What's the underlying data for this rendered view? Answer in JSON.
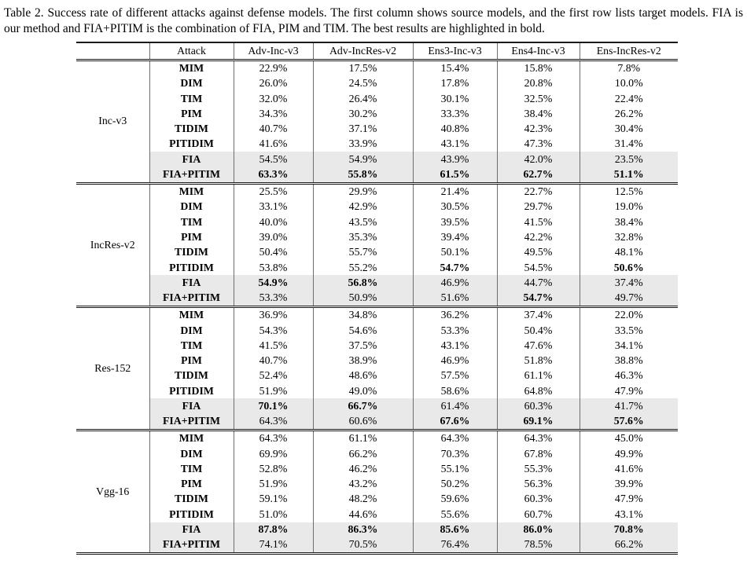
{
  "caption": "Table 2. Success rate of different attacks against defense models. The first column shows source models, and the first row lists target models. FIA is our method and FIA+PITIM is the combination of FIA, PIM and TIM. The best results are highlighted in bold.",
  "colors": {
    "highlight_row": "#e9e9e9",
    "rule": "#1a1a1a"
  },
  "table": {
    "corner_label": "",
    "columns": [
      "Attack",
      "Adv-Inc-v3",
      "Adv-IncRes-v2",
      "Ens3-Inc-v3",
      "Ens4-Inc-v3",
      "Ens-IncRes-v2"
    ],
    "groups": [
      {
        "source": "Inc-v3",
        "rows": [
          {
            "attack": "MIM",
            "values": [
              "22.9%",
              "17.5%",
              "15.4%",
              "15.8%",
              "7.8%"
            ],
            "bold": [
              0,
              0,
              0,
              0,
              0
            ],
            "highlight": false
          },
          {
            "attack": "DIM",
            "values": [
              "26.0%",
              "24.5%",
              "17.8%",
              "20.8%",
              "10.0%"
            ],
            "bold": [
              0,
              0,
              0,
              0,
              0
            ],
            "highlight": false
          },
          {
            "attack": "TIM",
            "values": [
              "32.0%",
              "26.4%",
              "30.1%",
              "32.5%",
              "22.4%"
            ],
            "bold": [
              0,
              0,
              0,
              0,
              0
            ],
            "highlight": false
          },
          {
            "attack": "PIM",
            "values": [
              "34.3%",
              "30.2%",
              "33.3%",
              "38.4%",
              "26.2%"
            ],
            "bold": [
              0,
              0,
              0,
              0,
              0
            ],
            "highlight": false
          },
          {
            "attack": "TIDIM",
            "values": [
              "40.7%",
              "37.1%",
              "40.8%",
              "42.3%",
              "30.4%"
            ],
            "bold": [
              0,
              0,
              0,
              0,
              0
            ],
            "highlight": false
          },
          {
            "attack": "PITIDIM",
            "values": [
              "41.6%",
              "33.9%",
              "43.1%",
              "47.3%",
              "31.4%"
            ],
            "bold": [
              0,
              0,
              0,
              0,
              0
            ],
            "highlight": false
          },
          {
            "attack": "FIA",
            "values": [
              "54.5%",
              "54.9%",
              "43.9%",
              "42.0%",
              "23.5%"
            ],
            "bold": [
              0,
              0,
              0,
              0,
              0
            ],
            "highlight": true
          },
          {
            "attack": "FIA+PITIM",
            "values": [
              "63.3%",
              "55.8%",
              "61.5%",
              "62.7%",
              "51.1%"
            ],
            "bold": [
              1,
              1,
              1,
              1,
              1
            ],
            "highlight": true
          }
        ]
      },
      {
        "source": "IncRes-v2",
        "rows": [
          {
            "attack": "MIM",
            "values": [
              "25.5%",
              "29.9%",
              "21.4%",
              "22.7%",
              "12.5%"
            ],
            "bold": [
              0,
              0,
              0,
              0,
              0
            ],
            "highlight": false
          },
          {
            "attack": "DIM",
            "values": [
              "33.1%",
              "42.9%",
              "30.5%",
              "29.7%",
              "19.0%"
            ],
            "bold": [
              0,
              0,
              0,
              0,
              0
            ],
            "highlight": false
          },
          {
            "attack": "TIM",
            "values": [
              "40.0%",
              "43.5%",
              "39.5%",
              "41.5%",
              "38.4%"
            ],
            "bold": [
              0,
              0,
              0,
              0,
              0
            ],
            "highlight": false
          },
          {
            "attack": "PIM",
            "values": [
              "39.0%",
              "35.3%",
              "39.4%",
              "42.2%",
              "32.8%"
            ],
            "bold": [
              0,
              0,
              0,
              0,
              0
            ],
            "highlight": false
          },
          {
            "attack": "TIDIM",
            "values": [
              "50.4%",
              "55.7%",
              "50.1%",
              "49.5%",
              "48.1%"
            ],
            "bold": [
              0,
              0,
              0,
              0,
              0
            ],
            "highlight": false
          },
          {
            "attack": "PITIDIM",
            "values": [
              "53.8%",
              "55.2%",
              "54.7%",
              "54.5%",
              "50.6%"
            ],
            "bold": [
              0,
              0,
              1,
              0,
              1
            ],
            "highlight": false
          },
          {
            "attack": "FIA",
            "values": [
              "54.9%",
              "56.8%",
              "46.9%",
              "44.7%",
              "37.4%"
            ],
            "bold": [
              1,
              1,
              0,
              0,
              0
            ],
            "highlight": true
          },
          {
            "attack": "FIA+PITIM",
            "values": [
              "53.3%",
              "50.9%",
              "51.6%",
              "54.7%",
              "49.7%"
            ],
            "bold": [
              0,
              0,
              0,
              1,
              0
            ],
            "highlight": true
          }
        ]
      },
      {
        "source": "Res-152",
        "rows": [
          {
            "attack": "MIM",
            "values": [
              "36.9%",
              "34.8%",
              "36.2%",
              "37.4%",
              "22.0%"
            ],
            "bold": [
              0,
              0,
              0,
              0,
              0
            ],
            "highlight": false
          },
          {
            "attack": "DIM",
            "values": [
              "54.3%",
              "54.6%",
              "53.3%",
              "50.4%",
              "33.5%"
            ],
            "bold": [
              0,
              0,
              0,
              0,
              0
            ],
            "highlight": false
          },
          {
            "attack": "TIM",
            "values": [
              "41.5%",
              "37.5%",
              "43.1%",
              "47.6%",
              "34.1%"
            ],
            "bold": [
              0,
              0,
              0,
              0,
              0
            ],
            "highlight": false
          },
          {
            "attack": "PIM",
            "values": [
              "40.7%",
              "38.9%",
              "46.9%",
              "51.8%",
              "38.8%"
            ],
            "bold": [
              0,
              0,
              0,
              0,
              0
            ],
            "highlight": false
          },
          {
            "attack": "TIDIM",
            "values": [
              "52.4%",
              "48.6%",
              "57.5%",
              "61.1%",
              "46.3%"
            ],
            "bold": [
              0,
              0,
              0,
              0,
              0
            ],
            "highlight": false
          },
          {
            "attack": "PITIDIM",
            "values": [
              "51.9%",
              "49.0%",
              "58.6%",
              "64.8%",
              "47.9%"
            ],
            "bold": [
              0,
              0,
              0,
              0,
              0
            ],
            "highlight": false
          },
          {
            "attack": "FIA",
            "values": [
              "70.1%",
              "66.7%",
              "61.4%",
              "60.3%",
              "41.7%"
            ],
            "bold": [
              1,
              1,
              0,
              0,
              0
            ],
            "highlight": true
          },
          {
            "attack": "FIA+PITIM",
            "values": [
              "64.3%",
              "60.6%",
              "67.6%",
              "69.1%",
              "57.6%"
            ],
            "bold": [
              0,
              0,
              1,
              1,
              1
            ],
            "highlight": true
          }
        ]
      },
      {
        "source": "Vgg-16",
        "rows": [
          {
            "attack": "MIM",
            "values": [
              "64.3%",
              "61.1%",
              "64.3%",
              "64.3%",
              "45.0%"
            ],
            "bold": [
              0,
              0,
              0,
              0,
              0
            ],
            "highlight": false
          },
          {
            "attack": "DIM",
            "values": [
              "69.9%",
              "66.2%",
              "70.3%",
              "67.8%",
              "49.9%"
            ],
            "bold": [
              0,
              0,
              0,
              0,
              0
            ],
            "highlight": false
          },
          {
            "attack": "TIM",
            "values": [
              "52.8%",
              "46.2%",
              "55.1%",
              "55.3%",
              "41.6%"
            ],
            "bold": [
              0,
              0,
              0,
              0,
              0
            ],
            "highlight": false
          },
          {
            "attack": "PIM",
            "values": [
              "51.9%",
              "43.2%",
              "50.2%",
              "56.3%",
              "39.9%"
            ],
            "bold": [
              0,
              0,
              0,
              0,
              0
            ],
            "highlight": false
          },
          {
            "attack": "TIDIM",
            "values": [
              "59.1%",
              "48.2%",
              "59.6%",
              "60.3%",
              "47.9%"
            ],
            "bold": [
              0,
              0,
              0,
              0,
              0
            ],
            "highlight": false
          },
          {
            "attack": "PITIDIM",
            "values": [
              "51.0%",
              "44.6%",
              "55.6%",
              "60.7%",
              "43.1%"
            ],
            "bold": [
              0,
              0,
              0,
              0,
              0
            ],
            "highlight": false
          },
          {
            "attack": "FIA",
            "values": [
              "87.8%",
              "86.3%",
              "85.6%",
              "86.0%",
              "70.8%"
            ],
            "bold": [
              1,
              1,
              1,
              1,
              1
            ],
            "highlight": true
          },
          {
            "attack": "FIA+PITIM",
            "values": [
              "74.1%",
              "70.5%",
              "76.4%",
              "78.5%",
              "66.2%"
            ],
            "bold": [
              0,
              0,
              0,
              0,
              0
            ],
            "highlight": true
          }
        ]
      }
    ]
  }
}
